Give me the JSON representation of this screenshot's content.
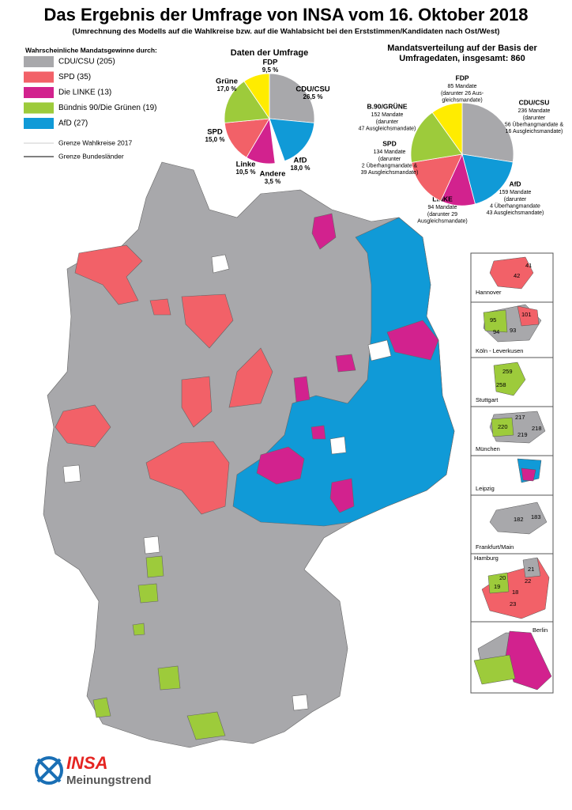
{
  "header": {
    "title": "Das Ergebnis der Umfrage von INSA vom 16. Oktober 2018",
    "subtitle": "(Umrechnung des Modells auf die Wahlkreise bzw. auf die Wahlabsicht bei den Erststimmen/Kandidaten nach Ost/West)"
  },
  "legend": {
    "title": "Wahrscheinliche Mandatsgewinne durch:",
    "items": [
      {
        "label": "CDU/CSU (205)",
        "color": "#a8a8ab"
      },
      {
        "label": "SPD (35)",
        "color": "#f26168"
      },
      {
        "label": "Die LINKE (13)",
        "color": "#d2228e"
      },
      {
        "label": "Bündnis 90/Die Grünen (19)",
        "color": "#9dcb3b"
      },
      {
        "label": "AfD (27)",
        "color": "#109ad7"
      }
    ],
    "lines": [
      "Grenze Wahlkreise 2017",
      "Grenze Bundesländer"
    ]
  },
  "chart_data": [
    {
      "type": "pie",
      "title": "Daten der Umfrage",
      "categories": [
        "CDU/CSU",
        "AfD",
        "Andere",
        "Linke",
        "SPD",
        "Grüne",
        "FDP"
      ],
      "values": [
        26.5,
        18.0,
        3.5,
        10.5,
        15.0,
        17.0,
        9.5
      ],
      "value_labels": [
        "26,5 %",
        "18,0 %",
        "3,5 %",
        "10,5 %",
        "15,0 %",
        "17,0 %",
        "9,5 %"
      ],
      "colors": [
        "#a8a8ab",
        "#109ad7",
        "#ffffff",
        "#d2228e",
        "#f26168",
        "#9dcb3b",
        "#ffec00"
      ]
    },
    {
      "type": "pie",
      "title": "Mandatsverteilung auf der Basis der Umfragedaten, insgesamt: 860",
      "categories": [
        "CDU/CSU",
        "AfD",
        "LINKE",
        "SPD",
        "B.90/GRÜNE",
        "FDP"
      ],
      "values": [
        236,
        159,
        94,
        134,
        152,
        85
      ],
      "value_labels": [
        "236 Mandate",
        "159 Mandate",
        "94 Mandate",
        "134 Mandate",
        "152 Mandate",
        "85 Mandate"
      ],
      "details": [
        [
          "(darunter",
          "56 Überhangmandate &",
          "16 Ausgleichsmandate)"
        ],
        [
          "(darunter",
          "4 Überhangmandate",
          "43 Ausgleichsmandate)"
        ],
        [
          "(darunter 29",
          "Ausgleichsmandate)"
        ],
        [
          "(darunter",
          "2 Überhangmandate &",
          "39 Ausgleichsmandate)"
        ],
        [
          "(darunter",
          "47 Ausgleichsmandate)"
        ],
        [
          "(darunter 26 Aus-",
          "gleichsmandate)"
        ]
      ],
      "colors": [
        "#a8a8ab",
        "#109ad7",
        "#d2228e",
        "#f26168",
        "#9dcb3b",
        "#ffec00"
      ]
    }
  ],
  "insets": [
    {
      "name": "Hannover",
      "districts": [
        "41",
        "42"
      ]
    },
    {
      "name": "Köln - Leverkusen",
      "districts": [
        "101",
        "95",
        "94",
        "93"
      ]
    },
    {
      "name": "Stuttgart",
      "districts": [
        "259",
        "258"
      ]
    },
    {
      "name": "München",
      "districts": [
        "217",
        "220",
        "219",
        "218"
      ]
    },
    {
      "name": "Leipzig",
      "districts": []
    },
    {
      "name": "Frankfurt/Main",
      "districts": [
        "182",
        "183"
      ]
    },
    {
      "name": "Hamburg",
      "districts": [
        "21",
        "20",
        "19",
        "22",
        "18",
        "23"
      ]
    },
    {
      "name": "Berlin",
      "districts": []
    }
  ],
  "logo": {
    "brand": "INSA",
    "tagline": "Meinungstrend"
  }
}
